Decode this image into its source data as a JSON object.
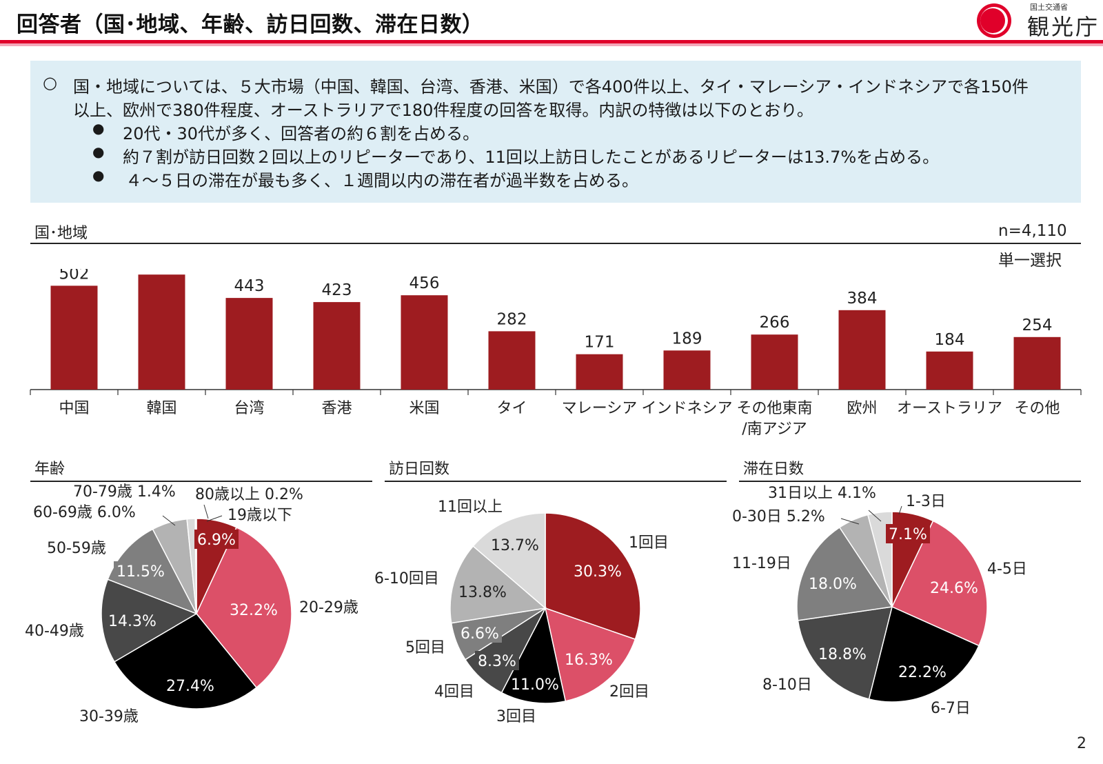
{
  "header": {
    "title": "回答者（国･地域、年齢、訪日回数、滞在日数）",
    "logo_ministry": "国土交通省",
    "logo_name": "観光庁"
  },
  "summary": {
    "main_bullet": "○",
    "main_line1": "国・地域については、５大市場（中国、韓国、台湾、香港、米国）で各400件以上、タイ・マレーシア・インドネシアで各150件",
    "main_line2": "以上、欧州で380件程度、オーストラリアで180件程度の回答を取得。内訳の特徴は以下のとおり。",
    "sub_bullet": "●",
    "sub1": "20代・30代が多く、回答者の約６割を占める。",
    "sub2": "約７割が訪日回数２回以上のリピーターであり、11回以上訪日したことがあるリピーターは13.7%を占める。",
    "sub3": "４～５日の滞在が最も多く、１週間以内の滞在者が過半数を占める。"
  },
  "sections": {
    "country": "国･地域",
    "age": "年齢",
    "visits": "訪日回数",
    "stay": "滞在日数"
  },
  "notes": {
    "n": "n=4,110",
    "select": "単一選択"
  },
  "page_number": "2",
  "colors": {
    "bar": "#9e1c20",
    "accent": "#e0002a"
  },
  "chart_data": [
    {
      "type": "bar",
      "categories": [
        "中国",
        "韓国",
        "台湾",
        "香港",
        "米国",
        "タイ",
        "マレーシア",
        "インドネシア",
        "その他東南\n/南アジア",
        "欧州",
        "オーストラリア",
        "その他"
      ],
      "values": [
        502,
        556,
        443,
        423,
        456,
        282,
        171,
        189,
        266,
        384,
        184,
        254
      ],
      "ylim": [
        0,
        600
      ]
    },
    {
      "type": "pie",
      "slices": [
        {
          "label": "19歳以下",
          "value": 6.9,
          "pct": "6.9%",
          "color": "#9e1c20",
          "boxed": true
        },
        {
          "label": "20-29歳",
          "value": 32.2,
          "pct": "32.2%",
          "color": "#dc5068"
        },
        {
          "label": "30-39歳",
          "value": 27.4,
          "pct": "27.4%",
          "color": "#000000"
        },
        {
          "label": "40-49歳",
          "value": 14.3,
          "pct": "14.3%",
          "color": "#484848"
        },
        {
          "label": "50-59歳",
          "value": 11.5,
          "pct": "11.5%",
          "color": "#7f7f7f",
          "boxed": true
        },
        {
          "label": "60-69歳 6.0%",
          "value": 6.0,
          "color": "#b3b3b3"
        },
        {
          "label": "70-79歳 1.4%",
          "value": 1.4,
          "color": "#dadada"
        },
        {
          "label": "80歳以上 0.2%",
          "value": 0.2,
          "color": "#f2f2f2"
        }
      ]
    },
    {
      "type": "pie",
      "slices": [
        {
          "label": "1回目",
          "value": 30.3,
          "pct": "30.3%",
          "color": "#9e1c20"
        },
        {
          "label": "2回目",
          "value": 16.3,
          "pct": "16.3%",
          "color": "#dc5068"
        },
        {
          "label": "3回目",
          "value": 11.0,
          "pct": "11.0%",
          "color": "#000000"
        },
        {
          "label": "4回目",
          "value": 8.3,
          "pct": "8.3%",
          "color": "#484848",
          "boxed": true
        },
        {
          "label": "5回目",
          "value": 6.6,
          "pct": "6.6%",
          "color": "#7f7f7f",
          "boxed": true
        },
        {
          "label": "6-10回目",
          "value": 13.8,
          "pct": "13.8%",
          "color": "#b3b3b3"
        },
        {
          "label": "11回以上",
          "value": 13.7,
          "pct": "13.7%",
          "color": "#dadada"
        }
      ]
    },
    {
      "type": "pie",
      "slices": [
        {
          "label": "1-3日",
          "value": 7.1,
          "pct": "7.1%",
          "color": "#9e1c20",
          "boxed": true
        },
        {
          "label": "4-5日",
          "value": 24.6,
          "pct": "24.6%",
          "color": "#dc5068"
        },
        {
          "label": "6-7日",
          "value": 22.2,
          "pct": "22.2%",
          "color": "#000000"
        },
        {
          "label": "8-10日",
          "value": 18.8,
          "pct": "18.8%",
          "color": "#484848"
        },
        {
          "label": "11-19日",
          "value": 18.0,
          "pct": "18.0%",
          "color": "#7f7f7f"
        },
        {
          "label": "20-30日 5.2%",
          "value": 5.2,
          "color": "#b3b3b3"
        },
        {
          "label": "31日以上 4.1%",
          "value": 4.1,
          "color": "#dadada"
        }
      ]
    }
  ]
}
